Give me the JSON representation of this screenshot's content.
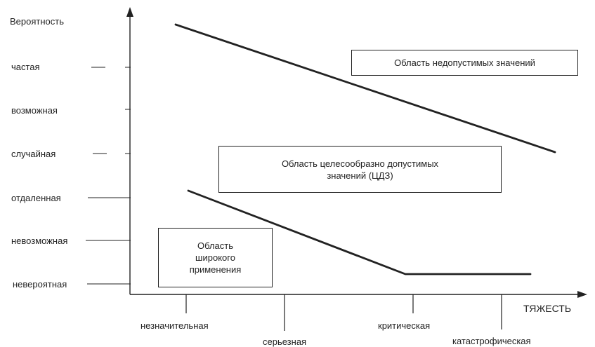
{
  "y_axis": {
    "title": "Вероятность",
    "levels": [
      "частая",
      "возможная",
      "случайная",
      "отдаленная",
      "невозможная",
      "невероятная"
    ]
  },
  "x_axis": {
    "title": "ТЯЖЕСТЬ",
    "levels": [
      "незначительная",
      "серьезная",
      "критическая",
      "катастрофическая"
    ]
  },
  "regions": {
    "unacceptable": "Область недопустимых значений",
    "alarp_line1": "Область целесообразно допустимых",
    "alarp_line2": "значений (ЦДЗ)",
    "broad_line1": "Область",
    "broad_line2": "широкого",
    "broad_line3": "применения"
  }
}
